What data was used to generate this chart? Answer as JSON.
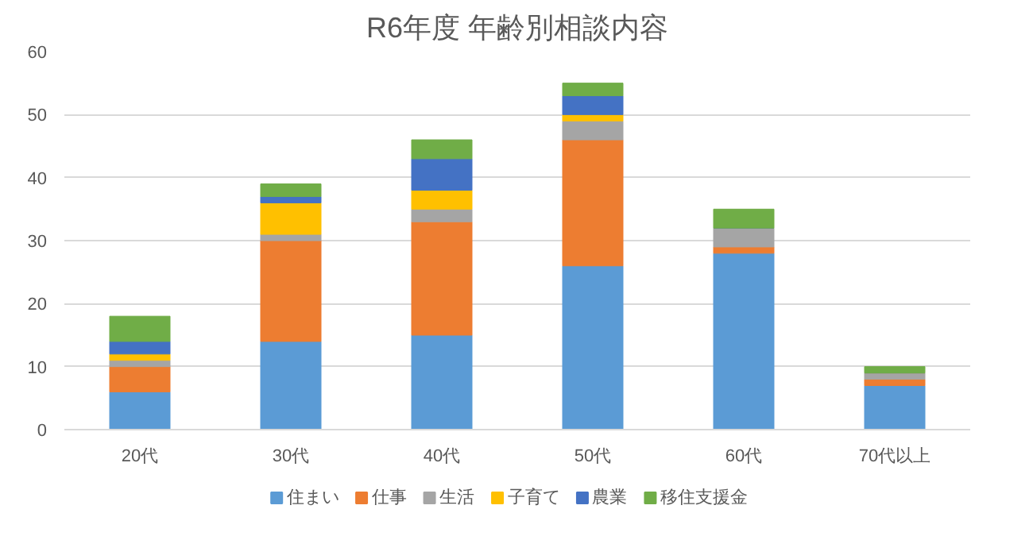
{
  "chart_data": {
    "type": "bar",
    "title": "R6年度 年齢別相談内容",
    "stacked": true,
    "categories": [
      "20代",
      "30代",
      "40代",
      "50代",
      "60代",
      "70代以上"
    ],
    "series": [
      {
        "name": "住まい",
        "color": "#5b9bd5",
        "values": [
          6,
          14,
          15,
          26,
          28,
          7
        ]
      },
      {
        "name": "仕事",
        "color": "#ed7d31",
        "values": [
          4,
          16,
          18,
          20,
          1,
          1
        ]
      },
      {
        "name": "生活",
        "color": "#a5a5a5",
        "values": [
          1,
          1,
          2,
          3,
          3,
          1
        ]
      },
      {
        "name": "子育て",
        "color": "#ffc000",
        "values": [
          1,
          5,
          3,
          1,
          0,
          0
        ]
      },
      {
        "name": "農業",
        "color": "#4472c4",
        "values": [
          2,
          1,
          5,
          3,
          0,
          0
        ]
      },
      {
        "name": "移住支援金",
        "color": "#70ad47",
        "values": [
          4,
          2,
          3,
          2,
          3,
          1
        ]
      }
    ],
    "ylim": [
      0,
      60
    ],
    "yticks": [
      0,
      10,
      20,
      30,
      40,
      50,
      60
    ],
    "grid": "y",
    "legend": "bottom"
  }
}
